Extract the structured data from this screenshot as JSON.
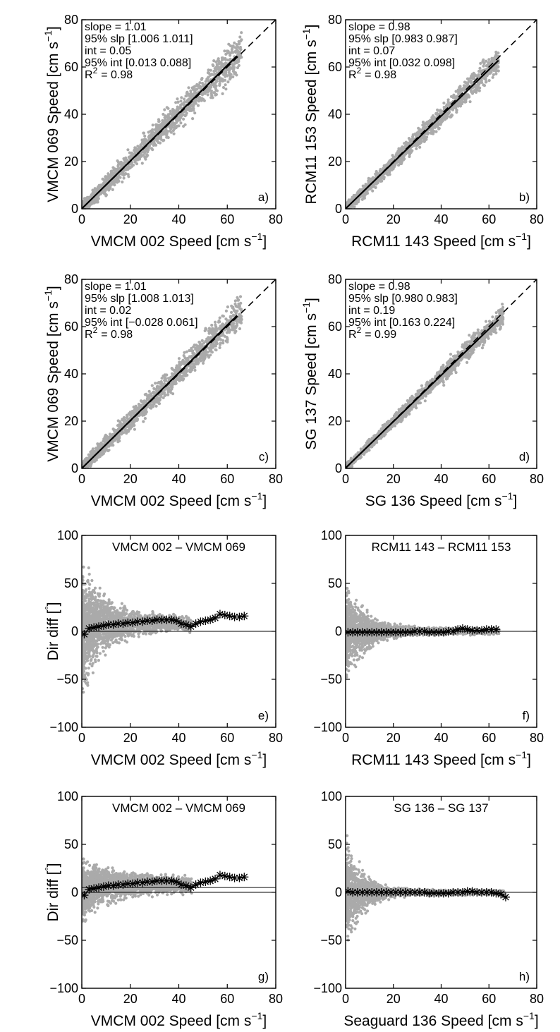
{
  "colors": {
    "scatter": "#aaaaaa",
    "fit": "#000000",
    "marker": "#000000",
    "axis": "#000000"
  },
  "chart_data": [
    {
      "type": "scatter",
      "panel": "a)",
      "xlabel": "VMCM 002 Speed [cm s",
      "ylabel": "VMCM 069 Speed [cm s",
      "unit_exp": "−1",
      "xlim": [
        0,
        80
      ],
      "ylim": [
        0,
        80
      ],
      "xticks": [
        "0",
        "20",
        "40",
        "60",
        "80"
      ],
      "yticks": [
        "0",
        "20",
        "40",
        "60",
        "80"
      ],
      "stats": [
        "slope = 1.01",
        "95% slp [1.006 1.011]",
        "int = 0.05",
        "95% int [0.013 0.088]",
        "R",
        "= 0.98"
      ],
      "stat_sup": "2",
      "fit": {
        "slope": 1.01,
        "intercept": 0.05,
        "x_end": 64
      },
      "one_to_one": true,
      "cloud": {
        "x_max": 66,
        "spread": 3.2
      }
    },
    {
      "type": "scatter",
      "panel": "b)",
      "xlabel": "RCM11 143 Speed [cm s",
      "ylabel": "RCM11 153 Speed [cm s",
      "unit_exp": "−1",
      "xlim": [
        0,
        80
      ],
      "ylim": [
        0,
        80
      ],
      "xticks": [
        "0",
        "20",
        "40",
        "60",
        "80"
      ],
      "yticks": [
        "0",
        "20",
        "40",
        "60",
        "80"
      ],
      "stats": [
        "slope = 0.98",
        "95% slp [0.983 0.987]",
        "int = 0.07",
        "95% int [0.032 0.098]",
        "R",
        "= 0.98"
      ],
      "stat_sup": "2",
      "fit": {
        "slope": 0.98,
        "intercept": 0.07,
        "x_end": 64
      },
      "one_to_one": true,
      "cloud": {
        "x_max": 64,
        "spread": 2.2
      }
    },
    {
      "type": "scatter",
      "panel": "c)",
      "xlabel": "VMCM 002 Speed [cm s",
      "ylabel": "VMCM 069 Speed [cm s",
      "unit_exp": "−1",
      "xlim": [
        0,
        80
      ],
      "ylim": [
        0,
        80
      ],
      "xticks": [
        "0",
        "20",
        "40",
        "60",
        "80"
      ],
      "yticks": [
        "0",
        "20",
        "40",
        "60",
        "80"
      ],
      "stats": [
        "slope = 1.01",
        "95% slp [1.008 1.013]",
        "int = 0.02",
        "95% int [−0.028 0.061]",
        "R",
        "= 0.98"
      ],
      "stat_sup": "2",
      "fit": {
        "slope": 1.01,
        "intercept": 0.02,
        "x_end": 64
      },
      "one_to_one": true,
      "cloud": {
        "x_max": 66,
        "spread": 2.8
      }
    },
    {
      "type": "scatter",
      "panel": "d)",
      "xlabel": "SG 136 Speed [cm s",
      "ylabel": "SG 137 Speed [cm s",
      "unit_exp": "−1",
      "xlim": [
        0,
        80
      ],
      "ylim": [
        0,
        80
      ],
      "xticks": [
        "0",
        "20",
        "40",
        "60",
        "80"
      ],
      "yticks": [
        "0",
        "20",
        "40",
        "60",
        "80"
      ],
      "stats": [
        "slope = 0.98",
        "95% slp [0.980 0.983]",
        "int = 0.19",
        "95% int [0.163 0.224]",
        "R",
        "= 0.99"
      ],
      "stat_sup": "2",
      "fit": {
        "slope": 0.98,
        "intercept": 0.19,
        "x_end": 64
      },
      "one_to_one": true,
      "cloud": {
        "x_max": 66,
        "spread": 1.8
      }
    },
    {
      "type": "scatter",
      "panel": "e)",
      "title": "VMCM 002 – VMCM 069",
      "xlabel": "VMCM 002 Speed [cm s",
      "ylabel": "Dir diff [",
      "ylabel_deg": "°",
      "ylabel_close": "]",
      "unit_exp": "−1",
      "xlim": [
        0,
        80
      ],
      "ylim": [
        -100,
        100
      ],
      "xticks": [
        "0",
        "20",
        "40",
        "60",
        "80"
      ],
      "yticks": [
        "−100",
        "−50",
        "0",
        "50",
        "100"
      ],
      "zero_line": true,
      "cloud": {
        "x_max": 45,
        "bias": 8,
        "spread0": 70,
        "decay": 0.1,
        "floor": 8
      },
      "bin_means": {
        "x": [
          1,
          3,
          5,
          7,
          9,
          11,
          13,
          15,
          17,
          19,
          21,
          23,
          25,
          27,
          29,
          31,
          33,
          35,
          37,
          39,
          41,
          43,
          45,
          47,
          49,
          51,
          53,
          55,
          57,
          59,
          61,
          63,
          65,
          67
        ],
        "y": [
          -3,
          3,
          4,
          5,
          6,
          7,
          7,
          8,
          8,
          9,
          9,
          10,
          10,
          11,
          11,
          12,
          12,
          12,
          12,
          11,
          8,
          7,
          5,
          8,
          10,
          11,
          12,
          14,
          18,
          17,
          16,
          15,
          15,
          16
        ]
      }
    },
    {
      "type": "scatter",
      "panel": "f)",
      "title": "RCM11 143 – RCM11 153",
      "xlabel": "RCM11 143 Speed [cm s",
      "ylabel": "",
      "unit_exp": "−1",
      "xlim": [
        0,
        80
      ],
      "ylim": [
        -100,
        100
      ],
      "xticks": [
        "0",
        "20",
        "40",
        "60",
        "80"
      ],
      "yticks": [
        "−100",
        "−50",
        "0",
        "50",
        "100"
      ],
      "zero_line": true,
      "cloud": {
        "x_max": 64,
        "bias": 0,
        "spread0": 55,
        "decay": 0.12,
        "floor": 4
      },
      "bin_means": {
        "x": [
          1,
          3,
          5,
          7,
          9,
          11,
          13,
          15,
          17,
          19,
          21,
          23,
          25,
          27,
          29,
          31,
          33,
          35,
          37,
          39,
          41,
          43,
          45,
          47,
          49,
          51,
          53,
          55,
          57,
          59,
          61,
          63
        ],
        "y": [
          -1,
          -1,
          -1,
          -1,
          -1,
          -1,
          -1,
          -1,
          -1,
          -1,
          -1,
          -1,
          -1,
          -1,
          0,
          0,
          0,
          -1,
          -1,
          -1,
          -1,
          0,
          0,
          2,
          3,
          2,
          1,
          1,
          1,
          2,
          2,
          2
        ]
      }
    },
    {
      "type": "scatter",
      "panel": "g)",
      "title": "VMCM 002 – VMCM 069",
      "xlabel": "VMCM 002 Speed [cm s",
      "ylabel": "Dir diff [",
      "ylabel_deg": "°",
      "ylabel_close": "]",
      "unit_exp": "−1",
      "xlim": [
        0,
        80
      ],
      "ylim": [
        -100,
        100
      ],
      "xticks": [
        "0",
        "20",
        "40",
        "60",
        "80"
      ],
      "yticks": [
        "−100",
        "−50",
        "0",
        "50",
        "100"
      ],
      "zero_line": true,
      "ref_line": 5,
      "cloud": {
        "x_max": 45,
        "bias": 8,
        "spread0": 26,
        "decay": 0.06,
        "floor": 8
      },
      "bin_means": {
        "x": [
          1,
          3,
          5,
          7,
          9,
          11,
          13,
          15,
          17,
          19,
          21,
          23,
          25,
          27,
          29,
          31,
          33,
          35,
          37,
          39,
          41,
          43,
          45,
          47,
          49,
          51,
          53,
          55,
          57,
          59,
          61,
          63,
          65,
          67
        ],
        "y": [
          -3,
          3,
          4,
          5,
          6,
          7,
          7,
          8,
          8,
          9,
          9,
          10,
          10,
          11,
          11,
          12,
          12,
          12,
          12,
          11,
          8,
          7,
          5,
          8,
          10,
          11,
          12,
          14,
          18,
          17,
          16,
          15,
          15,
          16
        ]
      }
    },
    {
      "type": "scatter",
      "panel": "h)",
      "title": "SG 136 –  SG 137",
      "xlabel": "Seaguard 136 Speed [cm s",
      "ylabel": "",
      "unit_exp": "−1",
      "xlim": [
        0,
        80
      ],
      "ylim": [
        -100,
        100
      ],
      "xticks": [
        "0",
        "20",
        "40",
        "60",
        "80"
      ],
      "yticks": [
        "−100",
        "−50",
        "0",
        "50",
        "100"
      ],
      "zero_line": true,
      "cloud": {
        "x_max": 66,
        "bias": 0,
        "spread0": 60,
        "decay": 0.14,
        "floor": 3
      },
      "bin_means": {
        "x": [
          1,
          3,
          5,
          7,
          9,
          11,
          13,
          15,
          17,
          19,
          21,
          23,
          25,
          27,
          29,
          31,
          33,
          35,
          37,
          39,
          41,
          43,
          45,
          47,
          49,
          51,
          53,
          55,
          57,
          59,
          61,
          63,
          65,
          67
        ],
        "y": [
          1,
          0,
          0,
          0,
          0,
          0,
          0,
          0,
          0,
          0,
          0,
          0,
          0,
          0,
          0,
          0,
          0,
          -1,
          -1,
          -1,
          -1,
          -1,
          0,
          0,
          0,
          1,
          1,
          0,
          0,
          0,
          0,
          -1,
          -2,
          -5
        ]
      }
    }
  ]
}
